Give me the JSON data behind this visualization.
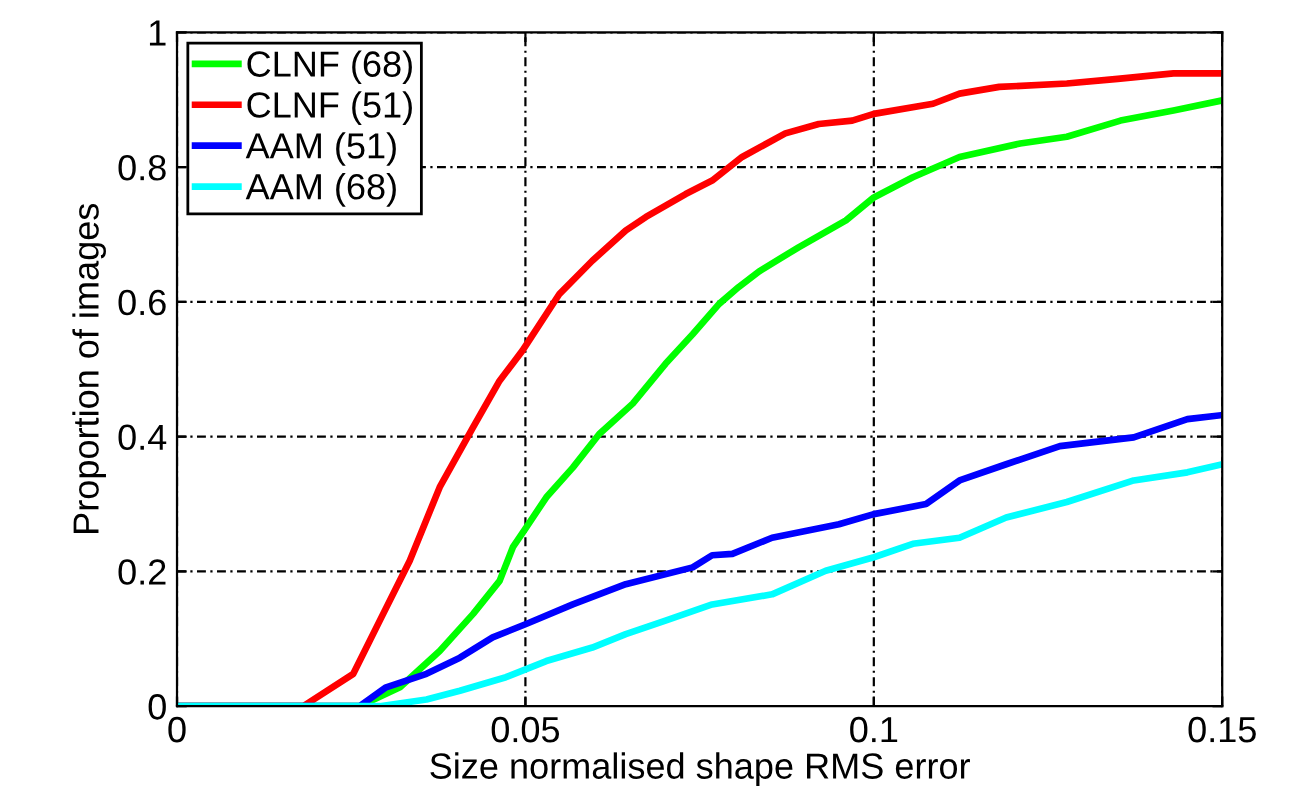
{
  "chart_data": {
    "type": "line",
    "xlabel": "Size normalised shape RMS error",
    "ylabel": "Proportion of images",
    "xlim": [
      0,
      0.15
    ],
    "ylim": [
      0,
      1
    ],
    "xticks": [
      0,
      0.05,
      0.1,
      0.15
    ],
    "yticks": [
      0,
      0.2,
      0.4,
      0.6,
      0.8,
      1
    ],
    "grid": true,
    "legend": "top left",
    "line_style": "solid",
    "marker": "none",
    "series": [
      {
        "name": "CLNF (68)",
        "color": "#00ff00",
        "x": [
          0,
          0.0262,
          0.032,
          0.0377,
          0.0425,
          0.0463,
          0.0482,
          0.0501,
          0.053,
          0.0568,
          0.0606,
          0.0654,
          0.0701,
          0.074,
          0.0778,
          0.0806,
          0.0835,
          0.0892,
          0.096,
          0.1,
          0.1056,
          0.1123,
          0.121,
          0.1277,
          0.1354,
          0.143,
          0.15
        ],
        "values": [
          0,
          0,
          0.028,
          0.082,
          0.137,
          0.186,
          0.236,
          0.265,
          0.31,
          0.354,
          0.404,
          0.449,
          0.508,
          0.552,
          0.597,
          0.622,
          0.645,
          0.681,
          0.721,
          0.755,
          0.785,
          0.815,
          0.835,
          0.845,
          0.869,
          0.884,
          0.899
        ]
      },
      {
        "name": "CLNF (51)",
        "color": "#ff0000",
        "x": [
          0,
          0.0181,
          0.0253,
          0.0291,
          0.0334,
          0.0377,
          0.0425,
          0.0463,
          0.0496,
          0.0549,
          0.0596,
          0.0644,
          0.0673,
          0.073,
          0.0768,
          0.0811,
          0.0873,
          0.0921,
          0.0969,
          0.1,
          0.1085,
          0.1123,
          0.118,
          0.1277,
          0.135,
          0.143,
          0.15
        ],
        "values": [
          0,
          0,
          0.048,
          0.127,
          0.216,
          0.325,
          0.414,
          0.483,
          0.528,
          0.612,
          0.661,
          0.706,
          0.726,
          0.76,
          0.78,
          0.815,
          0.85,
          0.864,
          0.869,
          0.879,
          0.894,
          0.909,
          0.919,
          0.924,
          0.931,
          0.939,
          0.939
        ]
      },
      {
        "name": "AAM (51)",
        "color": "#0000ff",
        "x": [
          0,
          0.0262,
          0.03,
          0.0358,
          0.0406,
          0.0453,
          0.0501,
          0.0568,
          0.0644,
          0.074,
          0.0768,
          0.0797,
          0.0854,
          0.095,
          0.1,
          0.1075,
          0.1123,
          0.119,
          0.1267,
          0.1373,
          0.145,
          0.15
        ],
        "values": [
          0,
          0,
          0.028,
          0.048,
          0.072,
          0.102,
          0.122,
          0.151,
          0.181,
          0.206,
          0.224,
          0.226,
          0.25,
          0.27,
          0.285,
          0.3,
          0.335,
          0.359,
          0.386,
          0.399,
          0.426,
          0.432
        ]
      },
      {
        "name": "AAM (68)",
        "color": "#00ffff",
        "x": [
          0,
          0.0291,
          0.0358,
          0.0406,
          0.0472,
          0.053,
          0.0596,
          0.0644,
          0.0701,
          0.0768,
          0.0854,
          0.0931,
          0.1,
          0.1056,
          0.1123,
          0.119,
          0.1277,
          0.1373,
          0.145,
          0.15
        ],
        "values": [
          0,
          0,
          0.01,
          0.023,
          0.043,
          0.067,
          0.087,
          0.107,
          0.127,
          0.151,
          0.166,
          0.201,
          0.221,
          0.241,
          0.25,
          0.28,
          0.303,
          0.335,
          0.347,
          0.359
        ]
      }
    ]
  }
}
